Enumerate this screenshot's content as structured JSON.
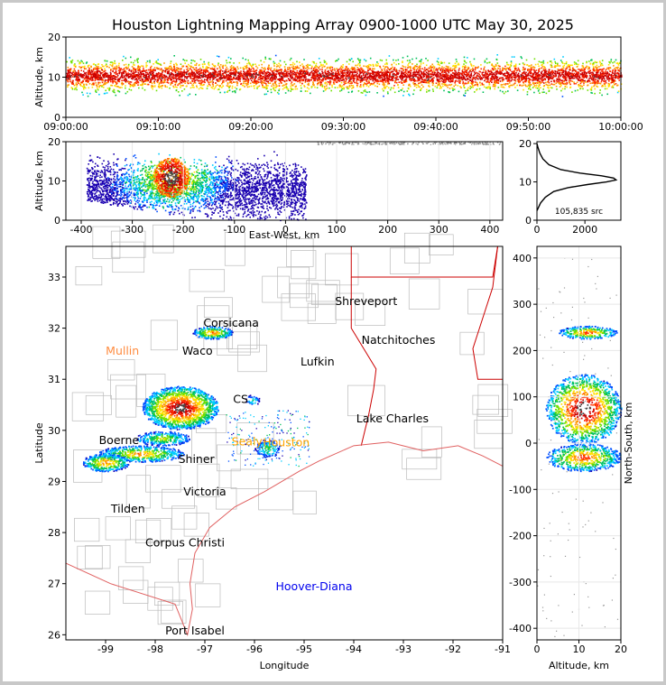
{
  "chart_data": [
    {
      "type": "heatmap",
      "panel": "altitude-time",
      "title": "Houston Lightning Mapping Array 0900-1000 UTC May 30, 2025",
      "ylabel": "Altitude, km",
      "ylim": [
        0,
        20
      ],
      "yticks": [
        "0",
        "10",
        "20"
      ],
      "xticks": [
        "09:00:00",
        "09:10:00",
        "09:20:00",
        "09:30:00",
        "09:40:00",
        "09:50:00",
        "10:00:00"
      ],
      "time_range_minutes": [
        0,
        60
      ],
      "band_altitude_km": [
        3,
        15
      ],
      "core_altitude_km": 10.5
    },
    {
      "type": "heatmap",
      "panel": "east-west-altitude",
      "xlabel": "East-West, km",
      "ylabel": "Altitude, km",
      "xlim": [
        -430,
        425
      ],
      "ylim": [
        0,
        20
      ],
      "xticks": [
        "-400",
        "-300",
        "-200",
        "-100",
        "0",
        "100",
        "200",
        "300",
        "400"
      ],
      "yticks": [
        "0",
        "10",
        "20"
      ],
      "core_x_km": -225,
      "core_altitude_km": 11
    },
    {
      "type": "line",
      "panel": "altitude-histogram",
      "annotation": "105,835 src",
      "xlim": [
        0,
        3500
      ],
      "ylim": [
        0,
        20.5
      ],
      "xticks": [
        "0",
        "2000"
      ],
      "yticks": [
        "0",
        "10",
        "20"
      ],
      "points": [
        [
          0,
          2.5
        ],
        [
          150,
          4.5
        ],
        [
          350,
          6
        ],
        [
          700,
          7.5
        ],
        [
          1300,
          8.5
        ],
        [
          2100,
          9.3
        ],
        [
          2900,
          10
        ],
        [
          3300,
          10.5
        ],
        [
          3200,
          11
        ],
        [
          2700,
          11.6
        ],
        [
          1800,
          12.3
        ],
        [
          1000,
          13.2
        ],
        [
          500,
          14.5
        ],
        [
          250,
          16
        ],
        [
          120,
          17.5
        ],
        [
          40,
          19
        ],
        [
          0,
          20
        ]
      ]
    },
    {
      "type": "scatter",
      "panel": "plan-view",
      "xlabel": "Longitude",
      "ylabel": "Latitude",
      "xlim": [
        -99.8,
        -91
      ],
      "ylim": [
        25.9,
        33.6
      ],
      "xticks": [
        "-99",
        "-98",
        "-97",
        "-96",
        "-95",
        "-94",
        "-93",
        "-92",
        "-91"
      ],
      "yticks": [
        "26",
        "27",
        "28",
        "29",
        "30",
        "31",
        "32",
        "33"
      ],
      "cities": [
        {
          "name": "Shreveport",
          "lon": -93.75,
          "lat": 32.52,
          "color": "#000000"
        },
        {
          "name": "Corsicana",
          "lon": -96.47,
          "lat": 32.1,
          "color": "#000000"
        },
        {
          "name": "Natchitoches",
          "lon": -93.1,
          "lat": 31.76,
          "color": "#000000"
        },
        {
          "name": "Mullin",
          "lon": -98.66,
          "lat": 31.55,
          "color": "#ff8c40"
        },
        {
          "name": "Waco",
          "lon": -97.15,
          "lat": 31.55,
          "color": "#000000"
        },
        {
          "name": "Lufkin",
          "lon": -94.73,
          "lat": 31.34,
          "color": "#000000"
        },
        {
          "name": "CS",
          "lon": -96.28,
          "lat": 30.61,
          "color": "#000000"
        },
        {
          "name": "Lake Charles",
          "lon": -93.22,
          "lat": 30.23,
          "color": "#000000"
        },
        {
          "name": "Boerne",
          "lon": -98.73,
          "lat": 29.8,
          "color": "#000000"
        },
        {
          "name": "Houston",
          "lon": -95.36,
          "lat": 29.76,
          "color": "#ffa500"
        },
        {
          "name": "Sealy",
          "lon": -96.15,
          "lat": 29.78,
          "color": "#ffa500"
        },
        {
          "name": "Shiner",
          "lon": -97.17,
          "lat": 29.43,
          "color": "#000000"
        },
        {
          "name": "Victoria",
          "lon": -97.0,
          "lat": 28.8,
          "color": "#000000"
        },
        {
          "name": "Tilden",
          "lon": -98.55,
          "lat": 28.46,
          "color": "#000000"
        },
        {
          "name": "Corpus Christi",
          "lon": -97.4,
          "lat": 27.8,
          "color": "#000000"
        },
        {
          "name": "Hoover-Diana",
          "lon": -94.8,
          "lat": 26.94,
          "color": "#0000ee"
        },
        {
          "name": "Port Isabel",
          "lon": -97.2,
          "lat": 26.08,
          "color": "#000000"
        }
      ]
    },
    {
      "type": "heatmap",
      "panel": "north-south-altitude",
      "xlabel": "Altitude, km",
      "ylabel": "North-South, km",
      "xlim": [
        0,
        20
      ],
      "ylim": [
        -425,
        425
      ],
      "xticks": [
        "0",
        "10",
        "20"
      ],
      "yticks": [
        "-400",
        "-300",
        "-200",
        "-100",
        "0",
        "100",
        "200",
        "300",
        "400"
      ]
    }
  ],
  "colors": {
    "density_scale": [
      "#1a00b0",
      "#0050ff",
      "#00ccff",
      "#00c05a",
      "#6ee000",
      "#ffe000",
      "#ff9900",
      "#ff2a00",
      "#cc0000",
      "#444444",
      "#ffffff"
    ],
    "state_border": "#cc0000",
    "county_border": "#bbbbbb",
    "coastline": "#e06060",
    "grid": "#e8e8e8"
  }
}
